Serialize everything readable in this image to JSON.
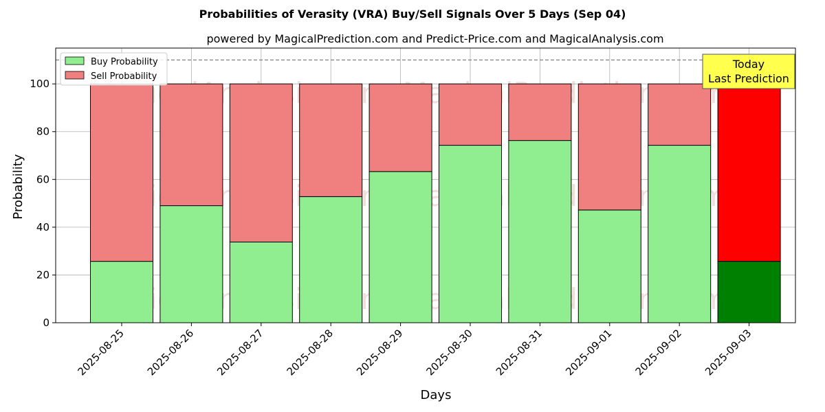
{
  "chart_data": {
    "type": "bar",
    "stacked": true,
    "title": "Probabilities of Verasity (VRA) Buy/Sell Signals Over 5 Days (Sep 04)",
    "subtitle": "powered by MagicalPrediction.com and Predict-Price.com and MagicalAnalysis.com",
    "xlabel": "Days",
    "ylabel": "Probability",
    "ylim": [
      0,
      115
    ],
    "yticks": [
      0,
      20,
      40,
      60,
      80,
      100
    ],
    "grid": true,
    "legend_position": "top-left",
    "categories": [
      "2025-08-25",
      "2025-08-26",
      "2025-08-27",
      "2025-08-28",
      "2025-08-29",
      "2025-08-30",
      "2025-08-31",
      "2025-09-01",
      "2025-09-02",
      "2025-09-03"
    ],
    "series": [
      {
        "name": "Buy Probability",
        "color": "#90ee90",
        "values": [
          25.7,
          49.0,
          33.8,
          52.8,
          63.3,
          74.3,
          76.3,
          47.2,
          74.3,
          25.7
        ]
      },
      {
        "name": "Sell Probability",
        "color": "#f08080",
        "values": [
          74.3,
          51.0,
          66.2,
          47.2,
          36.7,
          25.7,
          23.7,
          52.8,
          25.7,
          74.3
        ]
      }
    ],
    "highlight": {
      "index": 9,
      "buy_color": "#008000",
      "sell_color": "#ff0000"
    },
    "reference_line": {
      "y": 110,
      "style": "dashed",
      "color": "#808080"
    },
    "annotation": {
      "lines": [
        "Today",
        "Last Prediction"
      ],
      "background": "#ffff4d"
    },
    "watermarks": [
      "MagicalAnalysis.com",
      "MagicalPrediction.com"
    ]
  }
}
